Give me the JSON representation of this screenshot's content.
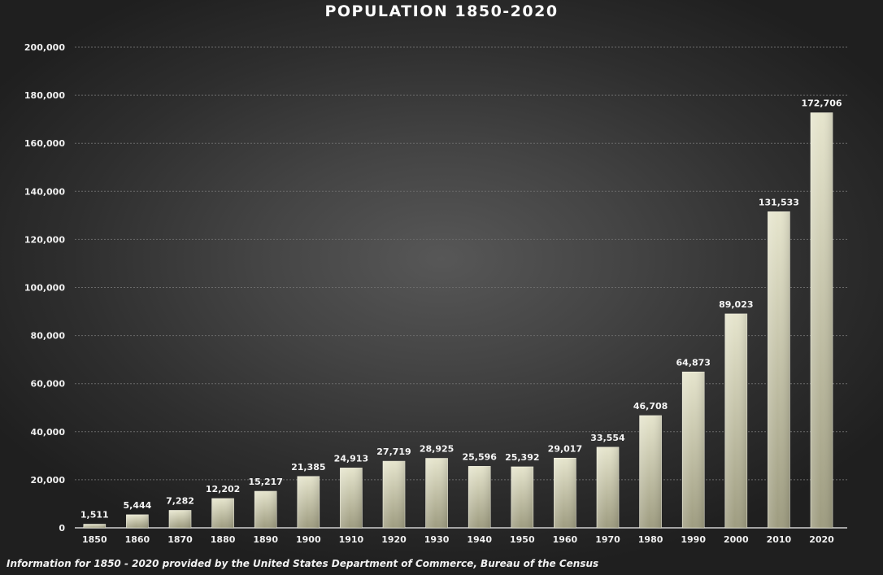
{
  "chart_data": {
    "type": "bar",
    "title": "POPULATION 1850-2020",
    "xlabel": "",
    "ylabel": "",
    "categories": [
      "1850",
      "1860",
      "1870",
      "1880",
      "1890",
      "1900",
      "1910",
      "1920",
      "1930",
      "1940",
      "1950",
      "1960",
      "1970",
      "1980",
      "1990",
      "2000",
      "2010",
      "2020"
    ],
    "values": [
      1511,
      5444,
      7282,
      12202,
      15217,
      21385,
      24913,
      27719,
      28925,
      25596,
      25392,
      29017,
      33554,
      46708,
      64873,
      89023,
      131533,
      172706
    ],
    "value_labels": [
      "1,511",
      "5,444",
      "7,282",
      "12,202",
      "15,217",
      "21,385",
      "24,913",
      "27,719",
      "28,925",
      "25,596",
      "25,392",
      "29,017",
      "33,554",
      "46,708",
      "64,873",
      "89,023",
      "131,533",
      "172,706"
    ],
    "ylim": [
      0,
      200000
    ],
    "yticks": [
      0,
      20000,
      40000,
      60000,
      80000,
      100000,
      120000,
      140000,
      160000,
      180000,
      200000
    ],
    "ytick_labels": [
      "0",
      "20,000",
      "40,000",
      "60,000",
      "80,000",
      "100,000",
      "120,000",
      "140,000",
      "160,000",
      "180,000",
      "200,000"
    ],
    "grid": true,
    "legend": "none",
    "source_note": "Information for 1850 - 2020 provided by the United States Department of Commerce, Bureau of the Census"
  },
  "colors": {
    "bar_light": "#e6e5cd",
    "bar_dark": "#9e9c80",
    "grid": "#6a6a6a",
    "axis": "#cfcfcf",
    "text": "#f0f0f0"
  }
}
